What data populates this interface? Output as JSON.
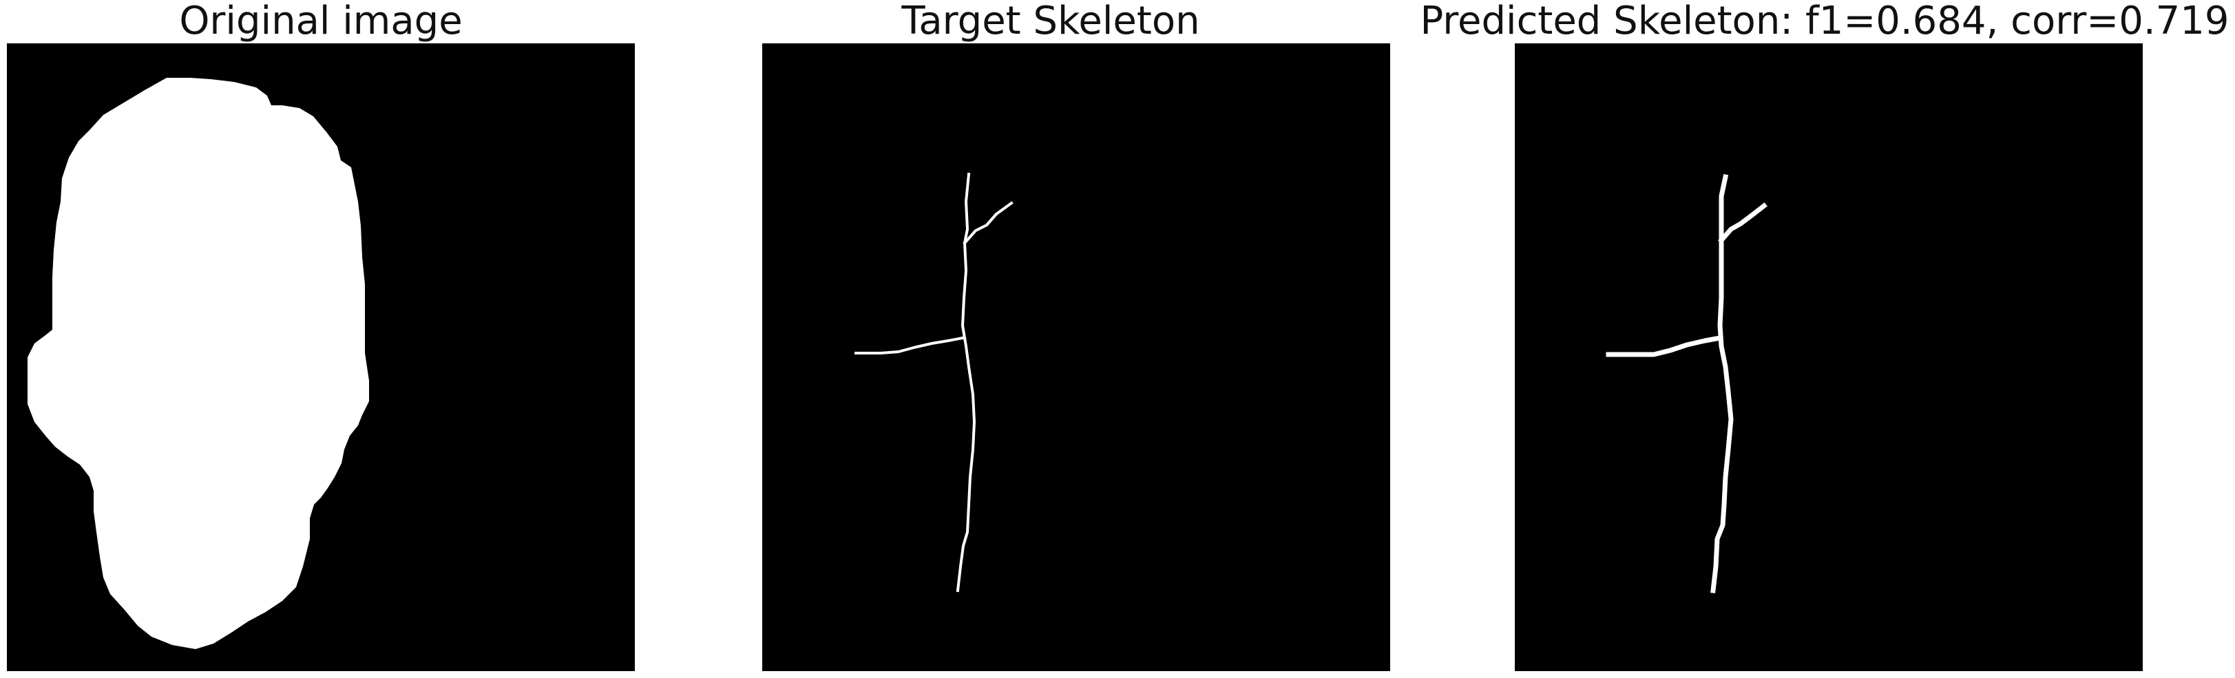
{
  "panels": [
    {
      "title": "Original image"
    },
    {
      "title": "Target Skeleton"
    },
    {
      "title": "Predicted Skeleton: f1=0.684, corr=0.719"
    }
  ],
  "colors": {
    "background": "#000000",
    "foreground": "#ffffff"
  }
}
